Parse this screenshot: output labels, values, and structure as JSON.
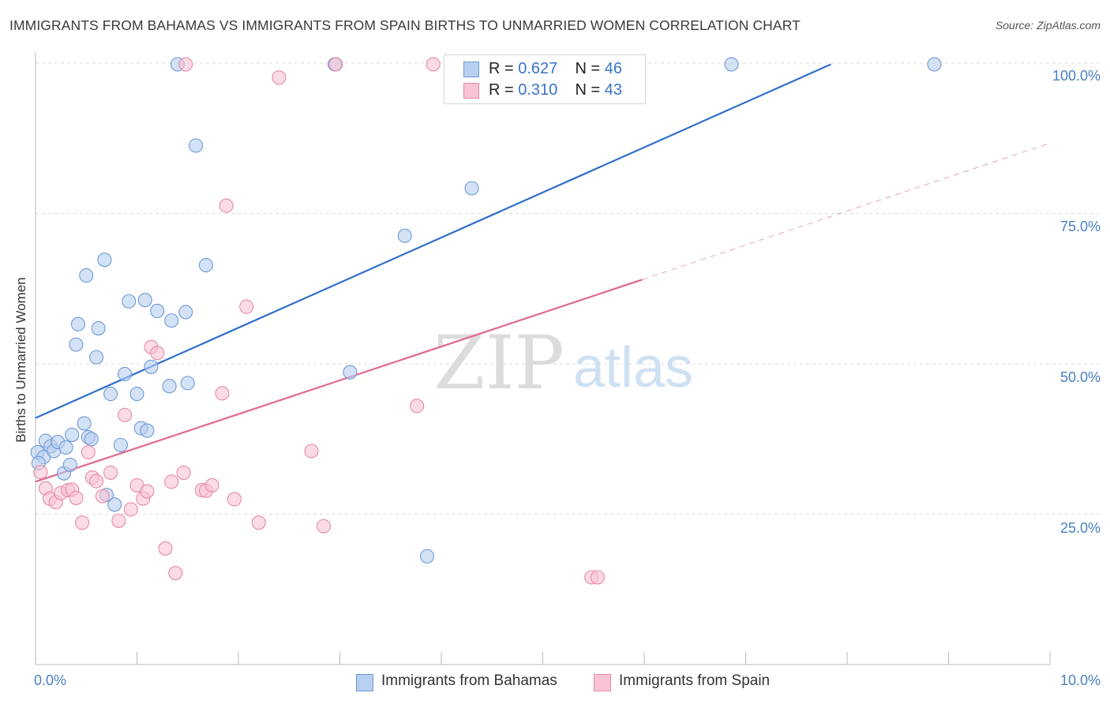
{
  "title": "IMMIGRANTS FROM BAHAMAS VS IMMIGRANTS FROM SPAIN BIRTHS TO UNMARRIED WOMEN CORRELATION CHART",
  "source": "Source: ZipAtlas.com",
  "watermark": {
    "zip": "ZIP",
    "atlas": "atlas"
  },
  "legend": {
    "r_label": "R =",
    "n_label": "N =",
    "items": [
      {
        "name": "Immigrants from Bahamas",
        "r": "0.627",
        "n": "46",
        "fill": "#b7cff0",
        "stroke": "#6f9ad6"
      },
      {
        "name": "Immigrants from Spain",
        "r": "0.310",
        "n": "43",
        "fill": "#f8c3d3",
        "stroke": "#e58aa8"
      }
    ]
  },
  "chart_data": {
    "type": "scatter",
    "title": "IMMIGRANTS FROM BAHAMAS VS IMMIGRANTS FROM SPAIN BIRTHS TO UNMARRIED WOMEN CORRELATION CHART",
    "xlabel": "",
    "ylabel": "Births to Unmarried Women",
    "xlim": [
      0,
      10
    ],
    "ylim": [
      0,
      102
    ],
    "x_tick_labels": [
      "0.0%",
      "10.0%"
    ],
    "y_ticks": [
      25,
      50,
      75,
      100
    ],
    "y_tick_labels": [
      "25.0%",
      "50.0%",
      "75.0%",
      "100.0%"
    ],
    "grid": true,
    "series": [
      {
        "name": "Immigrants from Bahamas",
        "color": "#6f9ad6",
        "fill": "#b7cff0",
        "trend": {
          "x": [
            0,
            7.84
          ],
          "y": [
            41.0,
            99.8
          ],
          "color": "#2f6fcb"
        },
        "points": [
          [
            0.02,
            35.3
          ],
          [
            0.08,
            34.5
          ],
          [
            0.1,
            37.2
          ],
          [
            0.15,
            36.3
          ],
          [
            0.18,
            35.5
          ],
          [
            0.22,
            37.0
          ],
          [
            0.28,
            31.8
          ],
          [
            0.3,
            36.1
          ],
          [
            0.34,
            33.2
          ],
          [
            0.36,
            38.2
          ],
          [
            0.4,
            53.2
          ],
          [
            0.42,
            56.6
          ],
          [
            0.48,
            40.1
          ],
          [
            0.5,
            64.7
          ],
          [
            0.52,
            37.8
          ],
          [
            0.55,
            37.5
          ],
          [
            0.6,
            51.1
          ],
          [
            0.62,
            55.9
          ],
          [
            0.68,
            67.3
          ],
          [
            0.7,
            28.2
          ],
          [
            0.74,
            45.0
          ],
          [
            0.78,
            26.6
          ],
          [
            0.84,
            36.5
          ],
          [
            0.88,
            48.3
          ],
          [
            0.92,
            60.4
          ],
          [
            1.0,
            45.0
          ],
          [
            1.04,
            39.3
          ],
          [
            1.08,
            60.6
          ],
          [
            1.1,
            38.9
          ],
          [
            1.14,
            49.5
          ],
          [
            1.2,
            58.8
          ],
          [
            1.32,
            46.3
          ],
          [
            1.34,
            57.2
          ],
          [
            1.4,
            99.8
          ],
          [
            1.48,
            58.6
          ],
          [
            1.5,
            46.8
          ],
          [
            1.58,
            86.3
          ],
          [
            1.68,
            66.4
          ],
          [
            2.95,
            99.8
          ],
          [
            3.1,
            48.6
          ],
          [
            3.64,
            71.3
          ],
          [
            3.86,
            18.0
          ],
          [
            4.3,
            79.2
          ],
          [
            6.86,
            99.8
          ],
          [
            8.86,
            99.8
          ],
          [
            0.03,
            33.5
          ]
        ]
      },
      {
        "name": "Immigrants from Spain",
        "color": "#e58aa8",
        "fill": "#f8c3d3",
        "trend": {
          "x": [
            0,
            5.98
          ],
          "y": [
            30.4,
            64.0
          ],
          "color": "#e0688f"
        },
        "trend_extension": {
          "x": [
            5.98,
            10.0
          ],
          "y": [
            64.0,
            86.7
          ]
        },
        "points": [
          [
            0.05,
            32.0
          ],
          [
            0.1,
            29.3
          ],
          [
            0.14,
            27.6
          ],
          [
            0.2,
            27.0
          ],
          [
            0.25,
            28.5
          ],
          [
            0.32,
            29.0
          ],
          [
            0.36,
            29.1
          ],
          [
            0.4,
            27.7
          ],
          [
            0.46,
            23.6
          ],
          [
            0.52,
            35.3
          ],
          [
            0.56,
            31.1
          ],
          [
            0.6,
            30.5
          ],
          [
            0.66,
            28.0
          ],
          [
            0.74,
            31.9
          ],
          [
            0.82,
            23.9
          ],
          [
            0.88,
            41.5
          ],
          [
            0.94,
            25.8
          ],
          [
            1.0,
            29.8
          ],
          [
            1.06,
            27.6
          ],
          [
            1.1,
            28.8
          ],
          [
            1.14,
            52.8
          ],
          [
            1.2,
            51.8
          ],
          [
            1.28,
            19.3
          ],
          [
            1.34,
            30.4
          ],
          [
            1.38,
            15.2
          ],
          [
            1.46,
            31.9
          ],
          [
            1.48,
            99.8
          ],
          [
            1.64,
            29.0
          ],
          [
            1.68,
            28.9
          ],
          [
            1.74,
            29.8
          ],
          [
            1.84,
            45.1
          ],
          [
            1.88,
            76.3
          ],
          [
            1.96,
            27.5
          ],
          [
            2.08,
            59.5
          ],
          [
            2.2,
            23.6
          ],
          [
            2.4,
            97.6
          ],
          [
            2.72,
            35.5
          ],
          [
            2.84,
            23.0
          ],
          [
            2.96,
            99.8
          ],
          [
            3.76,
            43.0
          ],
          [
            3.92,
            99.8
          ],
          [
            5.48,
            14.5
          ],
          [
            5.54,
            14.5
          ]
        ]
      }
    ]
  }
}
